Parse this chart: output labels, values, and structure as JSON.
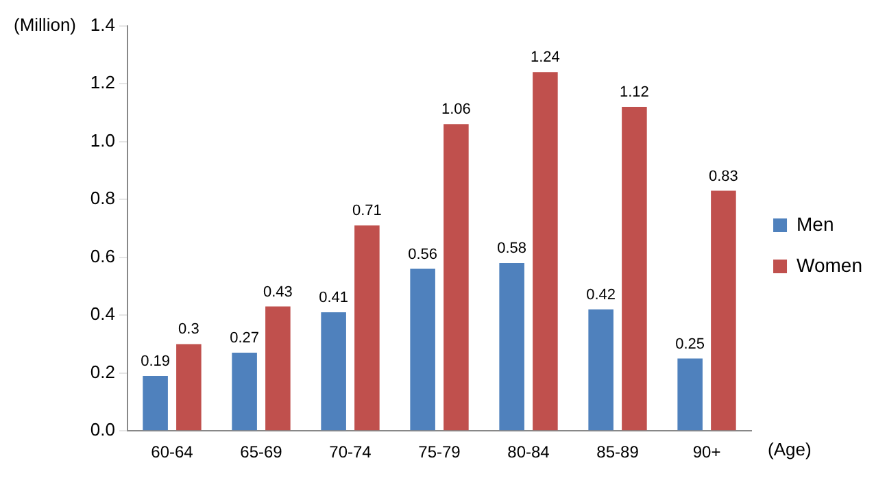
{
  "chart_data": {
    "type": "bar",
    "ylabel": "(Million)",
    "xlabel": "(Age)",
    "categories": [
      "60-64",
      "65-69",
      "70-74",
      "75-79",
      "80-84",
      "85-89",
      "90+"
    ],
    "series": [
      {
        "name": "Men",
        "color": "#4f81bd",
        "values": [
          0.19,
          0.27,
          0.41,
          0.56,
          0.58,
          0.42,
          0.25
        ]
      },
      {
        "name": "Women",
        "color": "#c0504d",
        "values": [
          0.3,
          0.43,
          0.71,
          1.06,
          1.24,
          1.12,
          0.83
        ]
      }
    ],
    "ylim": [
      0,
      1.4
    ],
    "yticks": [
      {
        "value": 0,
        "label": "0.0"
      },
      {
        "value": 0.2,
        "label": "0.2"
      },
      {
        "value": 0.4,
        "label": "0.4"
      },
      {
        "value": 0.6,
        "label": "0.6"
      },
      {
        "value": 0.8,
        "label": "0.8"
      },
      {
        "value": 1,
        "label": "1.0"
      },
      {
        "value": 1.2,
        "label": "1.2"
      },
      {
        "value": 1.4,
        "label": "1.4"
      }
    ],
    "grid": false,
    "legend": "right",
    "data_labels": true
  }
}
